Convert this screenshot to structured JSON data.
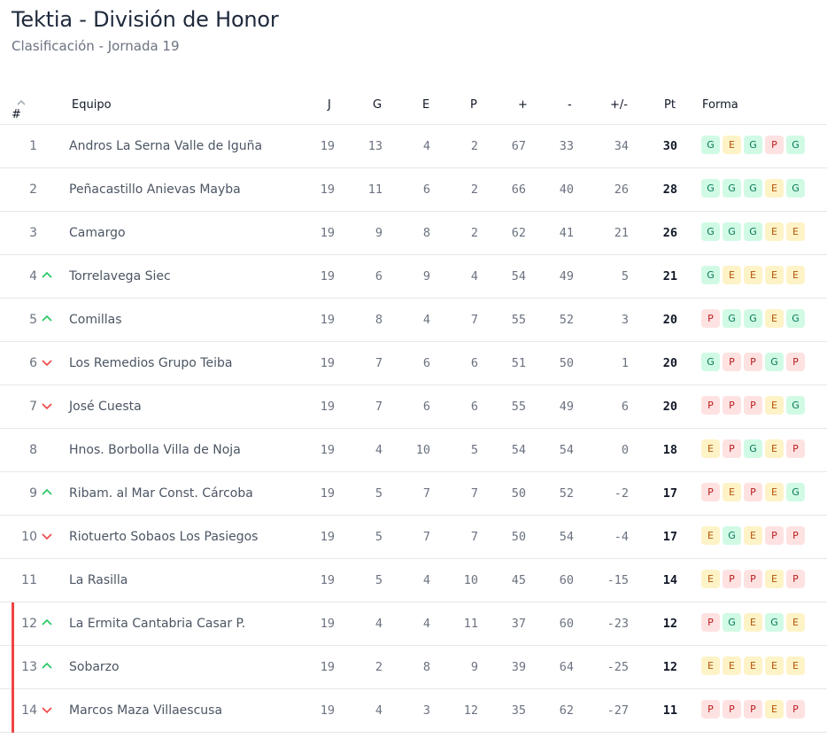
{
  "header": {
    "title": "Tektia - División de Honor",
    "subtitle": "Clasificación - Jornada 19"
  },
  "table": {
    "columns": {
      "pos": "#",
      "team": "Equipo",
      "j": "J",
      "g": "G",
      "e": "E",
      "p": "P",
      "gf": "+",
      "ga": "-",
      "diff": "+/-",
      "pts": "Pt",
      "form": "Forma"
    },
    "sort_icon": "chevron-up-icon",
    "colors": {
      "up": "#22c55e",
      "down": "#ef4444",
      "relegation": "#ef4444"
    },
    "rows": [
      {
        "pos": "1",
        "trend": "",
        "team": "Andros La Serna Valle de Iguña",
        "j": "19",
        "g": "13",
        "e": "4",
        "p": "2",
        "gf": "67",
        "ga": "33",
        "diff": "34",
        "pts": "30",
        "form": [
          "G",
          "E",
          "G",
          "P",
          "G"
        ],
        "zone": ""
      },
      {
        "pos": "2",
        "trend": "",
        "team": "Peñacastillo Anievas Mayba",
        "j": "19",
        "g": "11",
        "e": "6",
        "p": "2",
        "gf": "66",
        "ga": "40",
        "diff": "26",
        "pts": "28",
        "form": [
          "G",
          "G",
          "G",
          "E",
          "G"
        ],
        "zone": ""
      },
      {
        "pos": "3",
        "trend": "",
        "team": "Camargo",
        "j": "19",
        "g": "9",
        "e": "8",
        "p": "2",
        "gf": "62",
        "ga": "41",
        "diff": "21",
        "pts": "26",
        "form": [
          "G",
          "G",
          "G",
          "E",
          "E"
        ],
        "zone": ""
      },
      {
        "pos": "4",
        "trend": "up",
        "team": "Torrelavega Siec",
        "j": "19",
        "g": "6",
        "e": "9",
        "p": "4",
        "gf": "54",
        "ga": "49",
        "diff": "5",
        "pts": "21",
        "form": [
          "G",
          "E",
          "E",
          "E",
          "E"
        ],
        "zone": ""
      },
      {
        "pos": "5",
        "trend": "up",
        "team": "Comillas",
        "j": "19",
        "g": "8",
        "e": "4",
        "p": "7",
        "gf": "55",
        "ga": "52",
        "diff": "3",
        "pts": "20",
        "form": [
          "P",
          "G",
          "G",
          "E",
          "G"
        ],
        "zone": ""
      },
      {
        "pos": "6",
        "trend": "down",
        "team": "Los Remedios Grupo Teiba",
        "j": "19",
        "g": "7",
        "e": "6",
        "p": "6",
        "gf": "51",
        "ga": "50",
        "diff": "1",
        "pts": "20",
        "form": [
          "G",
          "P",
          "P",
          "G",
          "P"
        ],
        "zone": ""
      },
      {
        "pos": "7",
        "trend": "down",
        "team": "José Cuesta",
        "j": "19",
        "g": "7",
        "e": "6",
        "p": "6",
        "gf": "55",
        "ga": "49",
        "diff": "6",
        "pts": "20",
        "form": [
          "P",
          "P",
          "P",
          "E",
          "G"
        ],
        "zone": ""
      },
      {
        "pos": "8",
        "trend": "",
        "team": "Hnos. Borbolla Villa de Noja",
        "j": "19",
        "g": "4",
        "e": "10",
        "p": "5",
        "gf": "54",
        "ga": "54",
        "diff": "0",
        "pts": "18",
        "form": [
          "E",
          "P",
          "G",
          "E",
          "P"
        ],
        "zone": ""
      },
      {
        "pos": "9",
        "trend": "up",
        "team": "Ribam. al Mar Const. Cárcoba",
        "j": "19",
        "g": "5",
        "e": "7",
        "p": "7",
        "gf": "50",
        "ga": "52",
        "diff": "-2",
        "pts": "17",
        "form": [
          "P",
          "E",
          "P",
          "E",
          "G"
        ],
        "zone": ""
      },
      {
        "pos": "10",
        "trend": "down",
        "team": "Riotuerto Sobaos Los Pasiegos",
        "j": "19",
        "g": "5",
        "e": "7",
        "p": "7",
        "gf": "50",
        "ga": "54",
        "diff": "-4",
        "pts": "17",
        "form": [
          "E",
          "G",
          "E",
          "P",
          "P"
        ],
        "zone": ""
      },
      {
        "pos": "11",
        "trend": "",
        "team": "La Rasilla",
        "j": "19",
        "g": "5",
        "e": "4",
        "p": "10",
        "gf": "45",
        "ga": "60",
        "diff": "-15",
        "pts": "14",
        "form": [
          "E",
          "P",
          "P",
          "E",
          "P"
        ],
        "zone": ""
      },
      {
        "pos": "12",
        "trend": "up",
        "team": "La Ermita Cantabria Casar P.",
        "j": "19",
        "g": "4",
        "e": "4",
        "p": "11",
        "gf": "37",
        "ga": "60",
        "diff": "-23",
        "pts": "12",
        "form": [
          "P",
          "G",
          "E",
          "G",
          "E"
        ],
        "zone": "relegation"
      },
      {
        "pos": "13",
        "trend": "up",
        "team": "Sobarzo",
        "j": "19",
        "g": "2",
        "e": "8",
        "p": "9",
        "gf": "39",
        "ga": "64",
        "diff": "-25",
        "pts": "12",
        "form": [
          "E",
          "E",
          "E",
          "E",
          "E"
        ],
        "zone": "relegation"
      },
      {
        "pos": "14",
        "trend": "down",
        "team": "Marcos Maza Villaescusa",
        "j": "19",
        "g": "4",
        "e": "3",
        "p": "12",
        "gf": "35",
        "ga": "62",
        "diff": "-27",
        "pts": "11",
        "form": [
          "P",
          "P",
          "P",
          "E",
          "P"
        ],
        "zone": "relegation"
      }
    ]
  }
}
